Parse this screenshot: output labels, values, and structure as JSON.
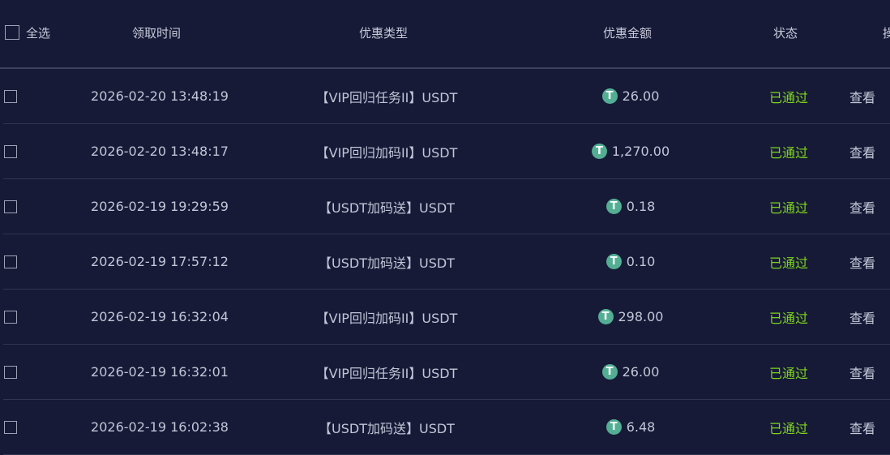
{
  "header": {
    "select_all": "全选",
    "time": "领取时间",
    "type": "优惠类型",
    "amount": "优惠金额",
    "status": "状态",
    "action": "操作"
  },
  "colors": {
    "background": "#161a37",
    "status_approved": "#7fd41e",
    "coin": "#53ae94"
  },
  "coin_icon": "usdt-tether-icon",
  "rows": [
    {
      "time": "2026-02-20 13:48:19",
      "type": "【VIP回归任务II】USDT",
      "amount": "26.00",
      "status": "已通过",
      "action": "查看"
    },
    {
      "time": "2026-02-20 13:48:17",
      "type": "【VIP回归加码II】USDT",
      "amount": "1,270.00",
      "status": "已通过",
      "action": "查看"
    },
    {
      "time": "2026-02-19 19:29:59",
      "type": "【USDT加码送】USDT",
      "amount": "0.18",
      "status": "已通过",
      "action": "查看"
    },
    {
      "time": "2026-02-19 17:57:12",
      "type": "【USDT加码送】USDT",
      "amount": "0.10",
      "status": "已通过",
      "action": "查看"
    },
    {
      "time": "2026-02-19 16:32:04",
      "type": "【VIP回归加码II】USDT",
      "amount": "298.00",
      "status": "已通过",
      "action": "查看"
    },
    {
      "time": "2026-02-19 16:32:01",
      "type": "【VIP回归任务II】USDT",
      "amount": "26.00",
      "status": "已通过",
      "action": "查看"
    },
    {
      "time": "2026-02-19 16:02:38",
      "type": "【USDT加码送】USDT",
      "amount": "6.48",
      "status": "已通过",
      "action": "查看"
    }
  ]
}
